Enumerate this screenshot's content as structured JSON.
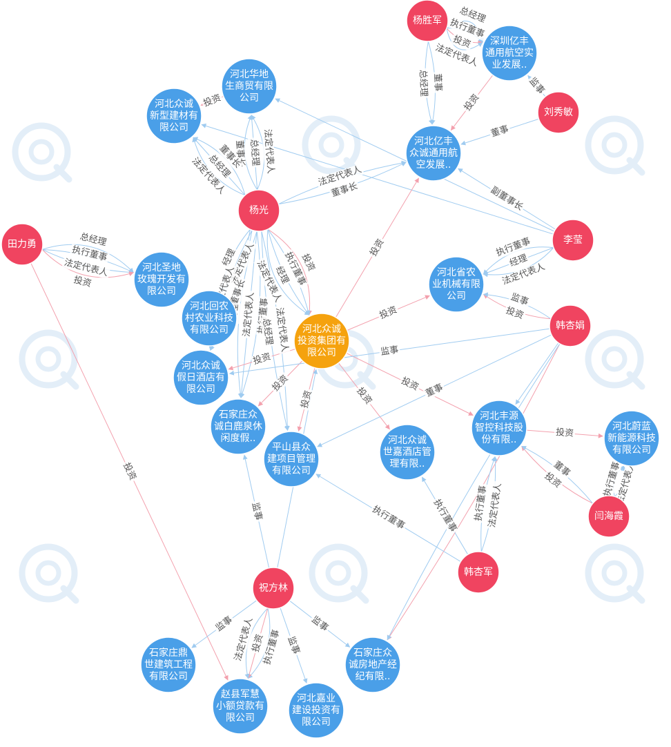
{
  "colors": {
    "person": "#f04460",
    "company": "#4a9fe8",
    "center": "#f5a20e",
    "edge_invest": "#f3a0ad",
    "edge_role": "#9fcbf0",
    "watermark": "#e3eef8"
  },
  "nodes": [
    {
      "id": "yangshengjun",
      "type": "person",
      "lines": [
        "杨胜军"
      ]
    },
    {
      "id": "shenzhen_yifeng",
      "type": "company",
      "lines": [
        "深圳亿丰",
        "通用航空实",
        "业发展.."
      ]
    },
    {
      "id": "liuxiumin",
      "type": "person",
      "lines": [
        "刘秀敏"
      ]
    },
    {
      "id": "hebei_huadi",
      "type": "company",
      "lines": [
        "河北华地",
        "生商贸有限",
        "公司"
      ]
    },
    {
      "id": "hebei_xinxing",
      "type": "company",
      "lines": [
        "河北众诚",
        "新型建材有",
        "限公司"
      ]
    },
    {
      "id": "hebei_yifeng",
      "type": "company",
      "lines": [
        "河北亿丰",
        "众诚通用航",
        "空发展.."
      ]
    },
    {
      "id": "yangguang",
      "type": "person",
      "lines": [
        "杨光"
      ]
    },
    {
      "id": "lizhan",
      "type": "person",
      "lines": [
        "李莹"
      ]
    },
    {
      "id": "tianliyong",
      "type": "person",
      "lines": [
        "田力勇"
      ]
    },
    {
      "id": "hebei_shengdi",
      "type": "company",
      "lines": [
        "河北圣地",
        "玫瑰开发有",
        "限公司"
      ]
    },
    {
      "id": "hebei_nongji",
      "type": "company",
      "lines": [
        "河北省农",
        "业机械有限",
        "公司"
      ]
    },
    {
      "id": "hebei_huinong",
      "type": "company",
      "lines": [
        "河北回农",
        "村农业科技",
        "有限公司"
      ]
    },
    {
      "id": "center",
      "type": "center",
      "lines": [
        "河北众诚",
        "投资集团有",
        "限公司"
      ]
    },
    {
      "id": "hanxingjuan",
      "type": "person",
      "lines": [
        "韩杏娟"
      ]
    },
    {
      "id": "hebei_jiari",
      "type": "company",
      "lines": [
        "河北众诚",
        "假日酒店有",
        "限公司"
      ]
    },
    {
      "id": "sjz_bailu",
      "type": "company",
      "lines": [
        "石家庄众",
        "诚白鹿泉休",
        "闲度假.."
      ]
    },
    {
      "id": "pingshan",
      "type": "company",
      "lines": [
        "平山县众",
        "建项目管理",
        "有限公司"
      ]
    },
    {
      "id": "hebei_shijia",
      "type": "company",
      "lines": [
        "河北众诚",
        "世嘉酒店管",
        "理有限.."
      ]
    },
    {
      "id": "hebei_fengyuan",
      "type": "company",
      "lines": [
        "河北丰源",
        "智控科技股",
        "份有限.."
      ]
    },
    {
      "id": "hebei_weilan",
      "type": "company",
      "lines": [
        "河北蔚蓝",
        "新能源科技",
        "有限公司"
      ]
    },
    {
      "id": "yanhaixia",
      "type": "person",
      "lines": [
        "闫海霞"
      ]
    },
    {
      "id": "hanxingjun",
      "type": "person",
      "lines": [
        "韩杏军"
      ]
    },
    {
      "id": "zhufanglin",
      "type": "person",
      "lines": [
        "祝方林"
      ]
    },
    {
      "id": "sjz_dingshi",
      "type": "company",
      "lines": [
        "石家庄鼎",
        "世建筑工程",
        "有限公司"
      ]
    },
    {
      "id": "sjz_fangdichan",
      "type": "company",
      "lines": [
        "石家庄众",
        "诚房地产经",
        "纪有限.."
      ]
    },
    {
      "id": "zhaoxian",
      "type": "company",
      "lines": [
        "赵县军慧",
        "小额贷款有",
        "限公司"
      ]
    },
    {
      "id": "hebei_jiaye",
      "type": "company",
      "lines": [
        "河北嘉业",
        "建设投资有",
        "限公司"
      ]
    }
  ],
  "edges": [
    {
      "from": "yangshengjun",
      "to": "shenzhen_yifeng",
      "kind": "role",
      "label": "总经理"
    },
    {
      "from": "yangshengjun",
      "to": "shenzhen_yifeng",
      "kind": "role",
      "label": "执行董事"
    },
    {
      "from": "yangshengjun",
      "to": "shenzhen_yifeng",
      "kind": "invest",
      "label": "投资"
    },
    {
      "from": "yangshengjun",
      "to": "shenzhen_yifeng",
      "kind": "role",
      "label": "法定代表人"
    },
    {
      "from": "yangshengjun",
      "to": "hebei_yifeng",
      "kind": "role",
      "label": "董事"
    },
    {
      "from": "yangshengjun",
      "to": "hebei_yifeng",
      "kind": "role",
      "label": "总经理"
    },
    {
      "from": "liuxiumin",
      "to": "shenzhen_yifeng",
      "kind": "role",
      "label": "监事"
    },
    {
      "from": "liuxiumin",
      "to": "hebei_yifeng",
      "kind": "role",
      "label": "董事"
    },
    {
      "from": "shenzhen_yifeng",
      "to": "hebei_yifeng",
      "kind": "invest",
      "label": "投资"
    },
    {
      "from": "hebei_huadi",
      "to": "hebei_xinxing",
      "kind": "invest",
      "label": "投资"
    },
    {
      "from": "yangguang",
      "to": "hebei_huadi",
      "kind": "role",
      "label": "董事长"
    },
    {
      "from": "yangguang",
      "to": "hebei_huadi",
      "kind": "role",
      "label": "总经理"
    },
    {
      "from": "yangguang",
      "to": "hebei_huadi",
      "kind": "role",
      "label": "法定代表人"
    },
    {
      "from": "yangguang",
      "to": "hebei_xinxing",
      "kind": "role",
      "label": "法定代表人"
    },
    {
      "from": "yangguang",
      "to": "hebei_xinxing",
      "kind": "role",
      "label": "总经理"
    },
    {
      "from": "yangguang",
      "to": "hebei_xinxing",
      "kind": "role",
      "label": "董事长"
    },
    {
      "from": "yangguang",
      "to": "hebei_yifeng",
      "kind": "role",
      "label": "法定代表人"
    },
    {
      "from": "yangguang",
      "to": "hebei_yifeng",
      "kind": "role",
      "label": "董事长"
    },
    {
      "from": "lizhan",
      "to": "hebei_yifeng",
      "kind": "role",
      "label": "副董事长"
    },
    {
      "from": "lizhan",
      "to": "hebei_xinxing",
      "kind": "role",
      "label": ""
    },
    {
      "from": "lizhan",
      "to": "hebei_huadi",
      "kind": "role",
      "label": ""
    },
    {
      "from": "center",
      "to": "hebei_yifeng",
      "kind": "invest",
      "label": "投资"
    },
    {
      "from": "tianliyong",
      "to": "hebei_shengdi",
      "kind": "role",
      "label": "总经理"
    },
    {
      "from": "tianliyong",
      "to": "hebei_shengdi",
      "kind": "role",
      "label": "执行董事"
    },
    {
      "from": "tianliyong",
      "to": "hebei_shengdi",
      "kind": "role",
      "label": "法定代表人"
    },
    {
      "from": "tianliyong",
      "to": "hebei_shengdi",
      "kind": "invest",
      "label": "投资"
    },
    {
      "from": "tianliyong",
      "to": "zhaoxian",
      "kind": "invest",
      "label": "投资"
    },
    {
      "from": "lizhan",
      "to": "hebei_nongji",
      "kind": "role",
      "label": "法定代表人"
    },
    {
      "from": "lizhan",
      "to": "hebei_nongji",
      "kind": "role",
      "label": "经理"
    },
    {
      "from": "lizhan",
      "to": "hebei_nongji",
      "kind": "role",
      "label": "执行董事"
    },
    {
      "from": "center",
      "to": "hebei_nongji",
      "kind": "invest",
      "label": "投资"
    },
    {
      "from": "hanxingjuan",
      "to": "hebei_nongji",
      "kind": "invest",
      "label": "投资"
    },
    {
      "from": "hanxingjuan",
      "to": "hebei_nongji",
      "kind": "role",
      "label": "监事"
    },
    {
      "from": "yangguang",
      "to": "center",
      "kind": "invest",
      "label": "投资"
    },
    {
      "from": "yangguang",
      "to": "center",
      "kind": "role",
      "label": "执行董事"
    },
    {
      "from": "yangguang",
      "to": "center",
      "kind": "role",
      "label": "经理"
    },
    {
      "from": "yangguang",
      "to": "center",
      "kind": "role",
      "label": "法定代表人"
    },
    {
      "from": "yangguang",
      "to": "hebei_huinong",
      "kind": "role",
      "label": "法定代表人"
    },
    {
      "from": "yangguang",
      "to": "hebei_huinong",
      "kind": "role",
      "label": "经理"
    },
    {
      "from": "yangguang",
      "to": "hebei_jiari",
      "kind": "role",
      "label": "董事长"
    },
    {
      "from": "yangguang",
      "to": "hebei_jiari",
      "kind": "role",
      "label": "法定代表人"
    },
    {
      "from": "yangguang",
      "to": "sjz_bailu",
      "kind": "role",
      "label": "执行董事"
    },
    {
      "from": "yangguang",
      "to": "sjz_bailu",
      "kind": "role",
      "label": "法定代表人"
    },
    {
      "from": "yangguang",
      "to": "pingshan",
      "kind": "role",
      "label": "法定代表人"
    },
    {
      "from": "yangguang",
      "to": "pingshan",
      "kind": "role",
      "label": "总经理"
    },
    {
      "from": "yangguang",
      "to": "sjz_bailu",
      "kind": "role",
      "label": "经理"
    },
    {
      "from": "center",
      "to": "hebei_jiari",
      "kind": "invest",
      "label": "投资"
    },
    {
      "from": "center",
      "to": "sjz_bailu",
      "kind": "invest",
      "label": "投资"
    },
    {
      "from": "center",
      "to": "pingshan",
      "kind": "invest",
      "label": "投资"
    },
    {
      "from": "center",
      "to": "hebei_shijia",
      "kind": "invest",
      "label": "投资"
    },
    {
      "from": "center",
      "to": "hebei_fengyuan",
      "kind": "invest",
      "label": "投资"
    },
    {
      "from": "hanxingjuan",
      "to": "hebei_jiari",
      "kind": "role",
      "label": "监事"
    },
    {
      "from": "hanxingjuan",
      "to": "pingshan",
      "kind": "role",
      "label": "董事"
    },
    {
      "from": "hanxingjuan",
      "to": "hebei_fengyuan",
      "kind": "role",
      "label": ""
    },
    {
      "from": "hanxingjuan",
      "to": "sjz_fangdichan",
      "kind": "invest",
      "label": ""
    },
    {
      "from": "hanxingjuan",
      "to": "sjz_fangdichan",
      "kind": "role",
      "label": ""
    },
    {
      "from": "hebei_fengyuan",
      "to": "hebei_weilan",
      "kind": "invest",
      "label": "投资"
    },
    {
      "from": "yanhaixia",
      "to": "hebei_fengyuan",
      "kind": "invest",
      "label": "投资"
    },
    {
      "from": "yanhaixia",
      "to": "hebei_fengyuan",
      "kind": "role",
      "label": "董事"
    },
    {
      "from": "yanhaixia",
      "to": "hebei_weilan",
      "kind": "role",
      "label": "执行董事"
    },
    {
      "from": "yanhaixia",
      "to": "hebei_weilan",
      "kind": "role",
      "label": "法定代表人"
    },
    {
      "from": "hanxingjun",
      "to": "hebei_shijia",
      "kind": "role",
      "label": "执行董事"
    },
    {
      "from": "hanxingjun",
      "to": "pingshan",
      "kind": "role",
      "label": "执行董事"
    },
    {
      "from": "hanxingjun",
      "to": "hebei_fengyuan",
      "kind": "role",
      "label": "执行董事"
    },
    {
      "from": "hanxingjun",
      "to": "hebei_fengyuan",
      "kind": "role",
      "label": "法定代表人"
    },
    {
      "from": "zhufanglin",
      "to": "sjz_bailu",
      "kind": "role",
      "label": "监事"
    },
    {
      "from": "zhufanglin",
      "to": "center",
      "kind": "role",
      "label": ""
    },
    {
      "from": "zhufanglin",
      "to": "sjz_dingshi",
      "kind": "role",
      "label": "监事"
    },
    {
      "from": "zhufanglin",
      "to": "zhaoxian",
      "kind": "role",
      "label": "执行董事"
    },
    {
      "from": "zhufanglin",
      "to": "zhaoxian",
      "kind": "invest",
      "label": "投资"
    },
    {
      "from": "zhufanglin",
      "to": "zhaoxian",
      "kind": "role",
      "label": "法定代表人"
    },
    {
      "from": "zhufanglin",
      "to": "hebei_jiaye",
      "kind": "role",
      "label": "监事"
    },
    {
      "from": "zhufanglin",
      "to": "sjz_fangdichan",
      "kind": "role",
      "label": "监事"
    }
  ]
}
